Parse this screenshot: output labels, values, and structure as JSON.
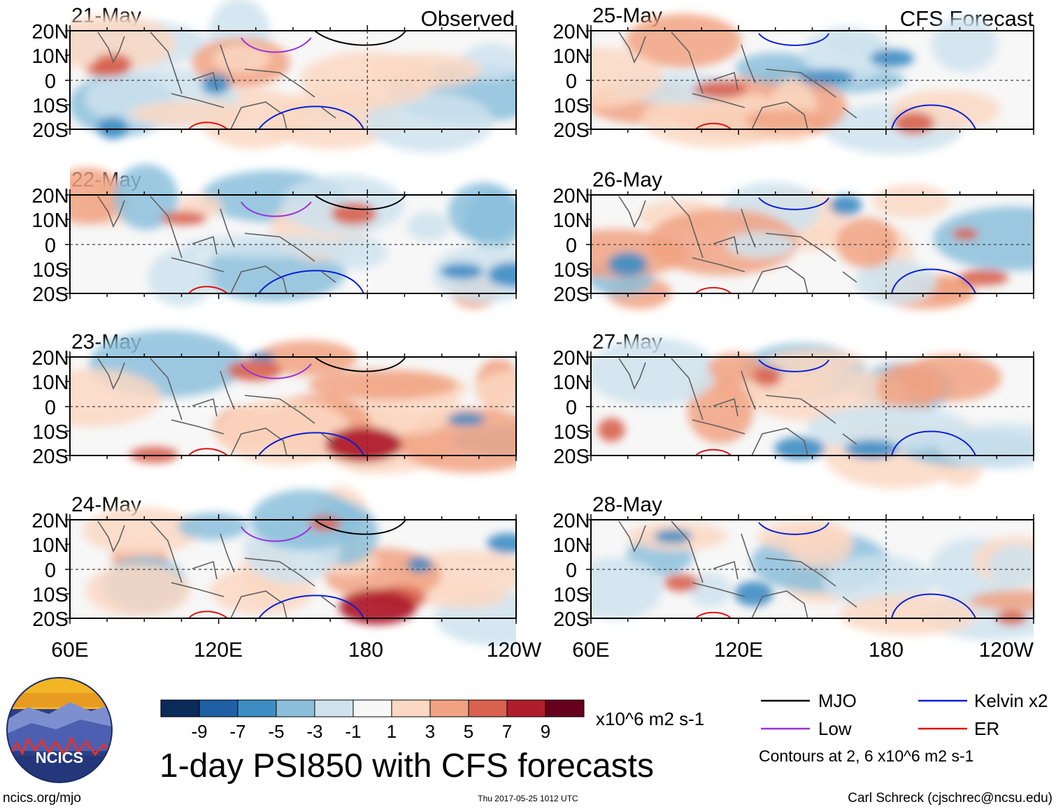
{
  "title": "1-day PSI850 with CFS forecasts",
  "left_column_label": "Observed",
  "right_column_label": "CFS Forecast",
  "panels": [
    {
      "date": "21-May",
      "column": "observed"
    },
    {
      "date": "22-May",
      "column": "observed"
    },
    {
      "date": "23-May",
      "column": "observed"
    },
    {
      "date": "24-May",
      "column": "observed"
    },
    {
      "date": "25-May",
      "column": "forecast"
    },
    {
      "date": "26-May",
      "column": "forecast"
    },
    {
      "date": "27-May",
      "column": "forecast"
    },
    {
      "date": "28-May",
      "column": "forecast"
    }
  ],
  "lat_labels": [
    "20N",
    "10N",
    "0",
    "10S",
    "20S"
  ],
  "lon_labels": [
    "60E",
    "120E",
    "180",
    "120W"
  ],
  "colorbar": {
    "colors": [
      "#0b2a5a",
      "#1f5fa3",
      "#3d8dc4",
      "#8bbfdc",
      "#cfe3ef",
      "#f7f7f7",
      "#fbd8c3",
      "#f1a283",
      "#d8624f",
      "#b01e2e",
      "#67001f"
    ],
    "ticks": [
      "-9",
      "-7",
      "-5",
      "-3",
      "-1",
      "1",
      "3",
      "5",
      "7",
      "9"
    ],
    "units": "x10^6 m2 s-1"
  },
  "legend": {
    "items": [
      {
        "label": "MJO",
        "color": "#000000"
      },
      {
        "label": "Kelvin x2",
        "color": "#0a1fd6"
      },
      {
        "label": "Low",
        "color": "#9b30d9"
      },
      {
        "label": "ER",
        "color": "#e01010"
      }
    ],
    "note": "Contours at 2, 6 x10^6 m2 s-1"
  },
  "logo_text": "NCICS",
  "footer": {
    "left": "ncics.org/mjo",
    "center": "Thu 2017-05-25 1012 UTC",
    "right": "Carl Schreck (cjschrec@ncsu.edu)"
  },
  "chart_data": {
    "type": "heatmap",
    "variable": "850-hPa streamfunction anomaly (PSI850)",
    "units": "x10^6 m2 s-1",
    "x_range_lon": [
      60,
      240
    ],
    "y_range_lat": [
      -20,
      20
    ],
    "levels": [
      -9,
      -7,
      -5,
      -3,
      -1,
      1,
      3,
      5,
      7,
      9
    ],
    "contour_levels": [
      2,
      6
    ],
    "series": [
      "MJO",
      "Low",
      "Kelvin x2",
      "ER"
    ]
  }
}
